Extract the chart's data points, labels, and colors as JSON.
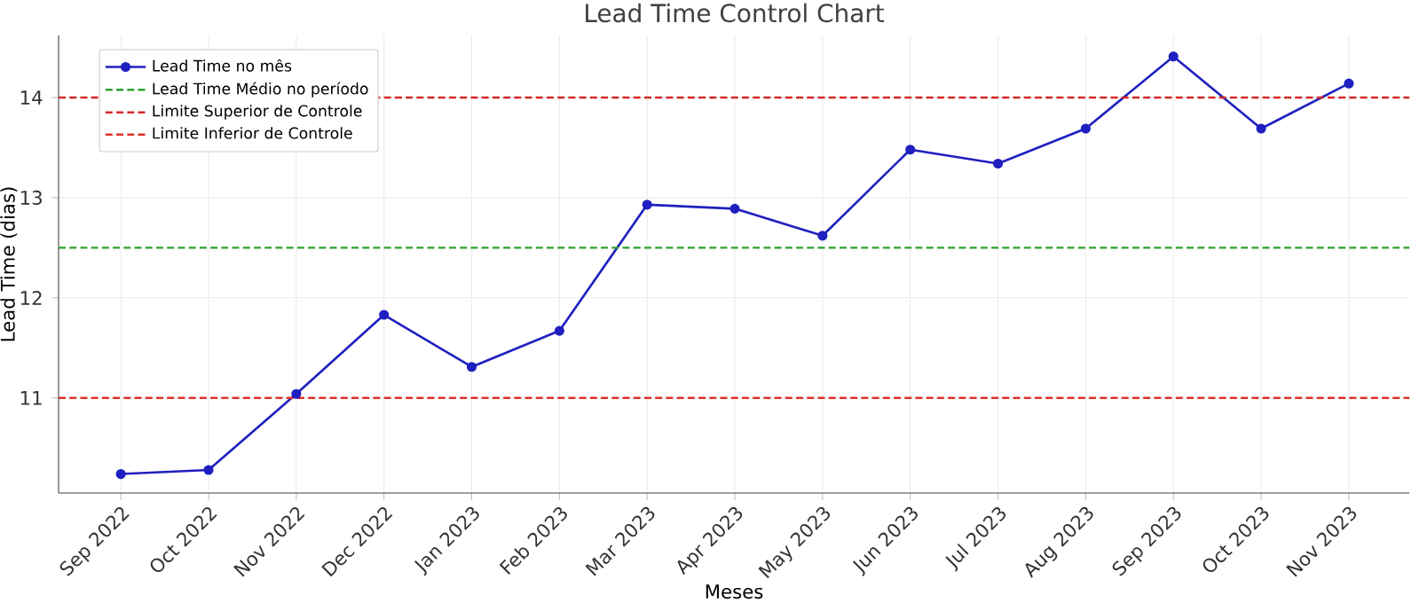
{
  "chart_data": {
    "type": "line",
    "title": "Lead Time Control Chart",
    "xlabel": "Meses",
    "ylabel": "Lead Time (dias)",
    "categories": [
      "Sep 2022",
      "Oct 2022",
      "Nov 2022",
      "Dec 2022",
      "Jan 2023",
      "Feb 2023",
      "Mar 2023",
      "Apr 2023",
      "May 2023",
      "Jun 2023",
      "Jul 2023",
      "Aug 2023",
      "Sep 2023",
      "Oct 2023",
      "Nov 2023"
    ],
    "series": [
      {
        "name": "Lead Time no mês",
        "color": "#2020c0",
        "values": [
          10.24,
          10.28,
          11.04,
          11.83,
          11.31,
          11.67,
          12.93,
          12.89,
          12.62,
          13.48,
          13.34,
          13.69,
          14.41,
          13.69,
          14.14
        ]
      }
    ],
    "ref_lines": [
      {
        "axis": "y",
        "value": 12.5,
        "label": "Lead Time Médio no período",
        "color": "#2ca02c",
        "line_style": "dashed"
      },
      {
        "axis": "y",
        "value": 14,
        "label": "Limite Superior de Controle",
        "color": "#d62728",
        "line_style": "dashed"
      },
      {
        "axis": "y",
        "value": 11,
        "label": "Limite Inferior de Controle",
        "color": "#e0302c",
        "line_style": "dashed"
      }
    ],
    "ylim": [
      10.05,
      14.62
    ],
    "yticks": [
      11,
      12,
      13,
      14
    ],
    "grid": true,
    "legend": "top left",
    "marker": "circle",
    "line_style": "solid"
  }
}
